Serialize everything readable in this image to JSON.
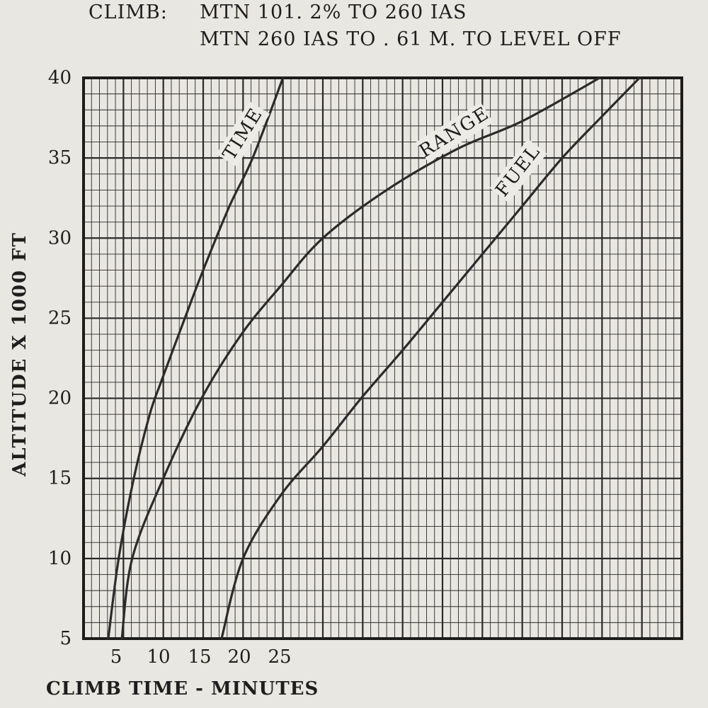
{
  "header": {
    "climb_label": "CLIMB:",
    "line1": "MTN 101. 2% TO 260 IAS",
    "line2": "MTN 260 IAS TO . 61 M. TO LEVEL OFF"
  },
  "chart_data": {
    "type": "line",
    "title": "",
    "xlabel": "CLIMB TIME - MINUTES",
    "ylabel": "ALTITUDE X 1000 FT",
    "xlim": [
      0,
      75
    ],
    "ylim": [
      5,
      40
    ],
    "x_ticks": [
      "5",
      "10",
      "15",
      "20",
      "25"
    ],
    "y_ticks": [
      "5",
      "10",
      "15",
      "20",
      "25",
      "30",
      "35",
      "40"
    ],
    "grid": true,
    "series": [
      {
        "name": "TIME",
        "color": "#2b2b2b",
        "x": [
          3.1,
          4.4,
          6.3,
          8.3,
          9.7,
          12.7,
          15.0,
          18.3,
          21.2,
          25.0
        ],
        "y": [
          5,
          10,
          15,
          19,
          21,
          25,
          28,
          32,
          35,
          40
        ]
      },
      {
        "name": "RANGE",
        "color": "#2b2b2b",
        "x": [
          4.8,
          6.1,
          10.0,
          14.8,
          19.8,
          24.7,
          30.0,
          38.0,
          47.0,
          55.0,
          64.7
        ],
        "y": [
          5,
          10,
          15,
          20,
          24,
          27,
          30,
          33,
          35.6,
          37.3,
          40
        ]
      },
      {
        "name": "FUEL",
        "color": "#2b2b2b",
        "x": [
          17.3,
          20.0,
          24.8,
          30.0,
          34.8,
          40.0,
          45.0,
          50.0,
          55.0,
          60.0,
          65.0,
          69.7
        ],
        "y": [
          5,
          10,
          14,
          17,
          20,
          23,
          26,
          29,
          32,
          35,
          37.6,
          40
        ]
      }
    ],
    "curve_labels": [
      {
        "series": "TIME",
        "text": "TIME",
        "at_x": 20.0,
        "at_y": 36.5,
        "angle": -58
      },
      {
        "series": "RANGE",
        "text": "RANGE",
        "at_x": 46.5,
        "at_y": 36.6,
        "angle": -32
      },
      {
        "series": "FUEL",
        "text": "FUEL",
        "at_x": 54.5,
        "at_y": 34.2,
        "angle": -52
      }
    ]
  }
}
